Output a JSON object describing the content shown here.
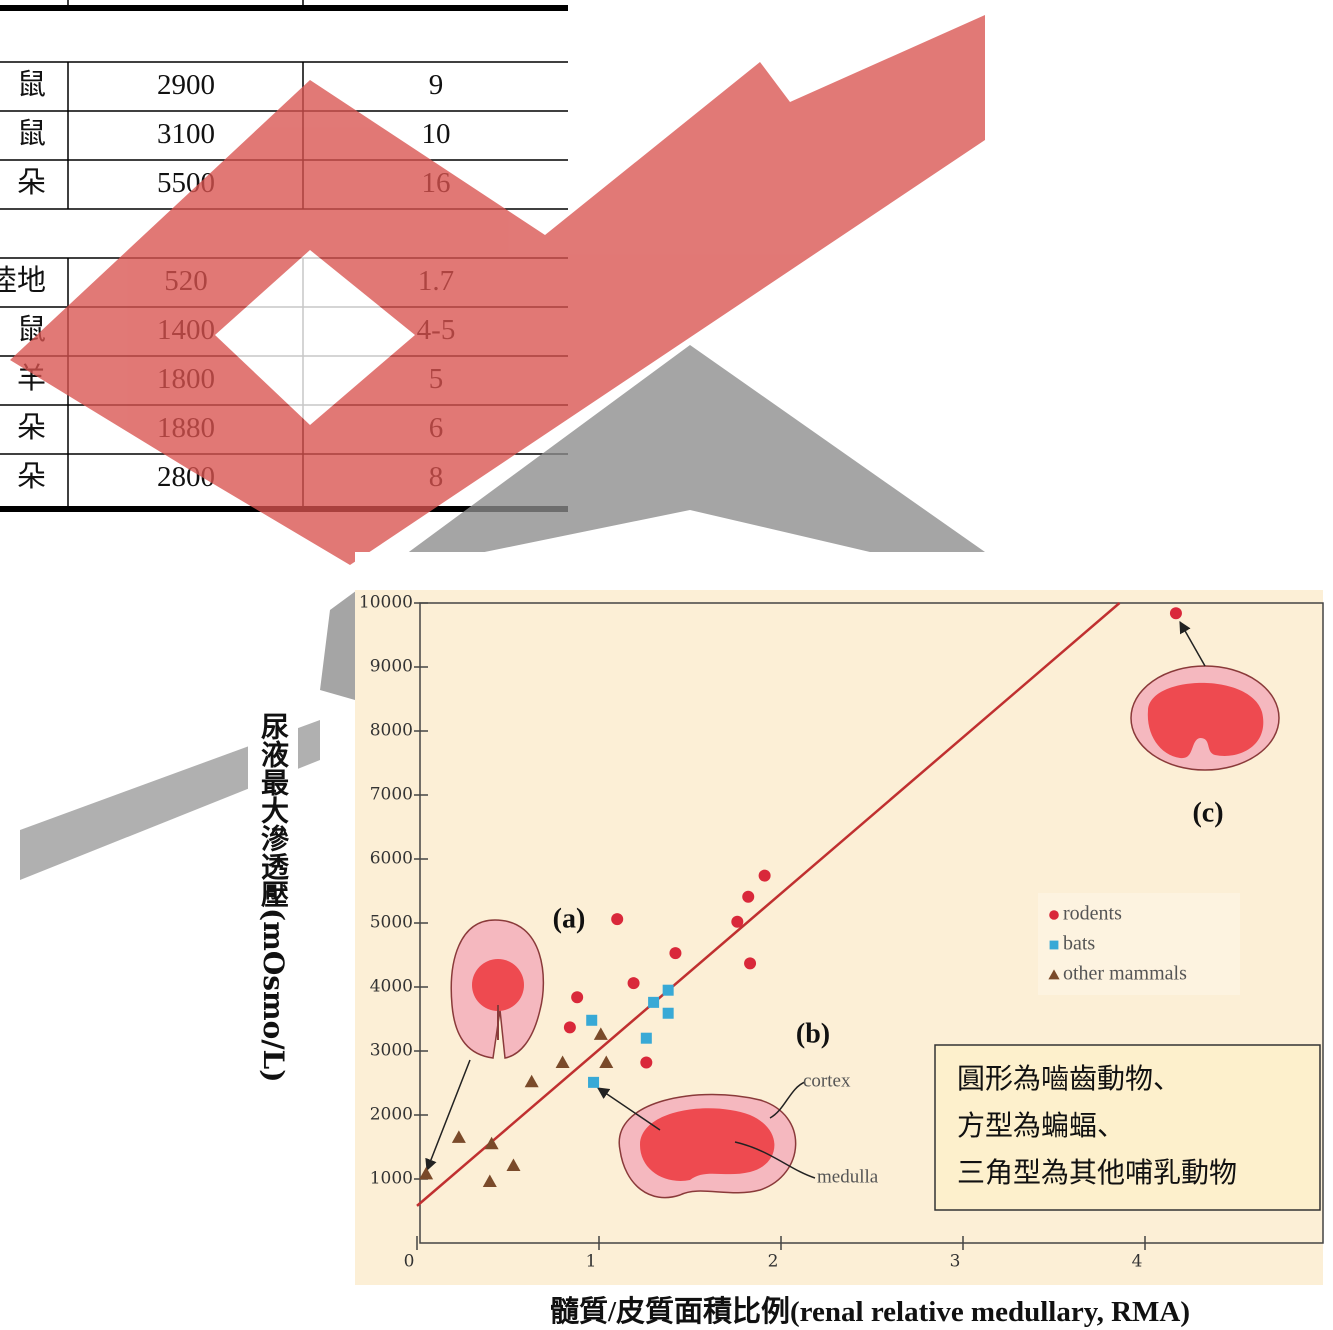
{
  "table": {
    "groups": [
      {
        "rows": [
          [
            "鼠",
            "2900",
            "9"
          ],
          [
            "鼠",
            "3100",
            "10"
          ],
          [
            "朵",
            "5500",
            "16"
          ]
        ]
      },
      {
        "rows": [
          [
            "陸地",
            "520",
            "1.7"
          ],
          [
            "鼠",
            "1400",
            "4-5"
          ],
          [
            "羊",
            "1800",
            "5"
          ],
          [
            "朵",
            "1880",
            "6"
          ],
          [
            "朵",
            "2800",
            "8"
          ]
        ]
      }
    ]
  },
  "chart_data": {
    "type": "scatter",
    "x_label": "髓質/皮質面積比例(renal relative medullary, RMA)",
    "y_label": "尿液最大滲透壓(mOsmo/L)",
    "xlim": [
      0,
      5
    ],
    "ylim": [
      0,
      10000
    ],
    "xticks": [
      0,
      1,
      2,
      3,
      4
    ],
    "yticks": [
      1000,
      2000,
      3000,
      4000,
      5000,
      6000,
      7000,
      8000,
      9000,
      10000
    ],
    "series": [
      {
        "name": "rodents",
        "color": "#d9283a",
        "marker": "circle",
        "x": [
          1.1,
          0.88,
          0.84,
          1.19,
          1.42,
          1.26,
          1.76,
          1.82,
          1.91,
          1.83,
          4.17
        ],
        "y": [
          5060,
          3840,
          3370,
          4060,
          4530,
          2820,
          5020,
          5410,
          5740,
          4370,
          9840
        ]
      },
      {
        "name": "bats",
        "color": "#38a9d6",
        "marker": "square",
        "x": [
          0.96,
          0.97,
          1.26,
          1.3,
          1.38,
          1.38
        ],
        "y": [
          3480,
          2510,
          3200,
          3760,
          3950,
          3590
        ]
      },
      {
        "name": "other mammals",
        "color": "#7a4a2a",
        "marker": "triangle",
        "x": [
          0.05,
          0.23,
          0.4,
          0.41,
          0.53,
          0.63,
          0.8,
          1.01,
          1.04
        ],
        "y": [
          1080,
          1650,
          960,
          1550,
          1210,
          2520,
          2820,
          3260,
          2820
        ]
      }
    ],
    "trend_line": {
      "color": "#c03030",
      "x": [
        0,
        3.86
      ],
      "y": [
        580,
        10000
      ]
    },
    "annotations": [
      "(a)",
      "(b)",
      "(c)",
      "cortex",
      "medulla"
    ],
    "note": [
      "圓形為嚙齒動物、",
      "方型為蝙蝠、",
      "三角型為其他哺乳動物"
    ]
  }
}
